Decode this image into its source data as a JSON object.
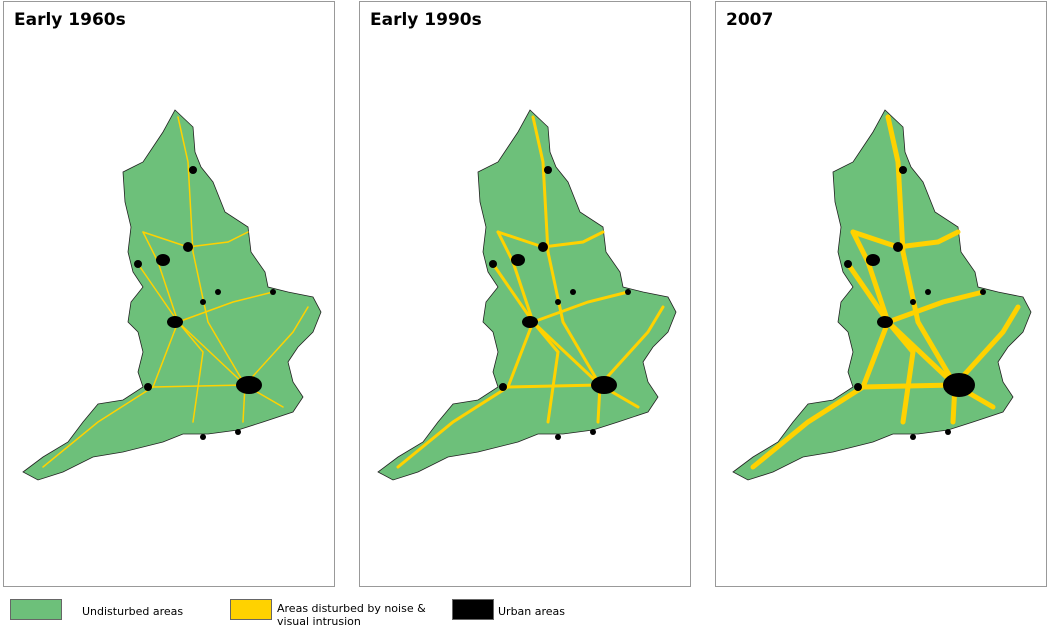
{
  "panels": [
    {
      "title": "Early 1960s"
    },
    {
      "title": "Early 1990s"
    },
    {
      "title": "2007"
    }
  ],
  "legend": [
    {
      "label": "Undisturbed areas"
    },
    {
      "label": "Areas disturbed by noise & visual intrusion"
    },
    {
      "label": "Urban areas"
    }
  ]
}
